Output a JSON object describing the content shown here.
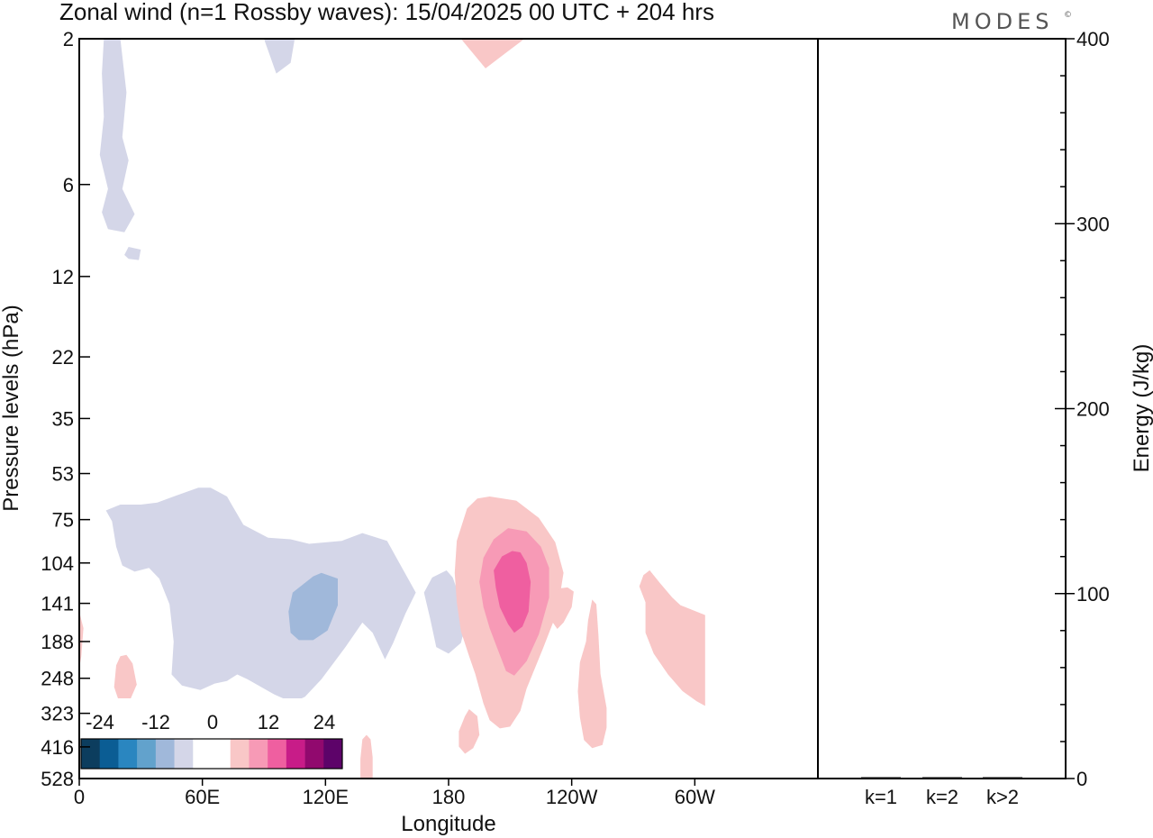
{
  "header": {
    "title": "Zonal wind (n=1 Rossby waves):  15/04/2025  00 UTC  + 204 hrs",
    "brand": "MODES",
    "brand_mark": "©"
  },
  "chart_data": [
    {
      "type": "heatmap",
      "title": "Zonal wind (n=1 Rossby waves):  15/04/2025  00 UTC  + 204 hrs",
      "xlabel": "Longitude",
      "ylabel": "Pressure levels (hPa)",
      "x_ticks": [
        "0",
        "60E",
        "120E",
        "180",
        "120W",
        "60W"
      ],
      "x_tick_values": [
        0,
        60,
        120,
        180,
        240,
        300
      ],
      "xlim": [
        0,
        360
      ],
      "y_ticks": [
        "2",
        "6",
        "12",
        "22",
        "35",
        "53",
        "75",
        "104",
        "141",
        "188",
        "248",
        "323",
        "416",
        "528"
      ],
      "grid": false,
      "colorbar": {
        "tick_labels": [
          "-24",
          "-12",
          "0",
          "12",
          "24"
        ],
        "colors": [
          "#0c3d5e",
          "#0b5d94",
          "#2a86c0",
          "#62a2cc",
          "#a0b8da",
          "#d4d6e8",
          "#ffffff",
          "#ffffff",
          "#f9c7c7",
          "#f79ab6",
          "#ef5fa0",
          "#c81c88",
          "#91096e",
          "#5d0369"
        ]
      },
      "contours": [
        {
          "name": "neg-1",
          "level": -4,
          "color": "#d4d6e8",
          "path": [
            [
              12,
              2.0
            ],
            [
              20,
              2.0
            ],
            [
              23,
              3.0
            ],
            [
              21,
              4.2
            ],
            [
              24,
              5.0
            ],
            [
              21,
              6.2
            ],
            [
              27,
              7.5
            ],
            [
              22,
              8.6
            ],
            [
              14,
              8.4
            ],
            [
              11,
              7.4
            ],
            [
              14,
              6.2
            ],
            [
              10,
              4.8
            ],
            [
              12,
              3.6
            ],
            [
              11,
              2.6
            ]
          ]
        },
        {
          "name": "neg-1b",
          "level": -4,
          "color": "#d4d6e8",
          "path": [
            [
              22,
              10.2
            ],
            [
              24,
              9.6
            ],
            [
              30,
              9.8
            ],
            [
              29,
              10.6
            ],
            [
              24,
              10.5
            ]
          ]
        },
        {
          "name": "neg-1c",
          "level": -4,
          "color": "#d4d6e8",
          "path": [
            [
              90,
              2.0
            ],
            [
              105,
              2.0
            ],
            [
              103,
              2.4
            ],
            [
              96,
              2.6
            ]
          ]
        },
        {
          "name": "neg-2",
          "level": -4,
          "color": "#d4d6e8",
          "path": [
            [
              38,
              66
            ],
            [
              46,
              63
            ],
            [
              58,
              59
            ],
            [
              64,
              59
            ],
            [
              72,
              63
            ],
            [
              80,
              78
            ],
            [
              92,
              86
            ],
            [
              103,
              87
            ],
            [
              112,
              90
            ],
            [
              128,
              88
            ],
            [
              138,
              83
            ],
            [
              150,
              88
            ],
            [
              158,
              110
            ],
            [
              164,
              130
            ],
            [
              159,
              152
            ],
            [
              153,
              190
            ],
            [
              149,
              215
            ],
            [
              143,
              176
            ],
            [
              138,
              163
            ],
            [
              130,
              195
            ],
            [
              118,
              250
            ],
            [
              110,
              285
            ],
            [
              104,
              298
            ],
            [
              95,
              280
            ],
            [
              82,
              250
            ],
            [
              77,
              241
            ],
            [
              72,
              253
            ],
            [
              66,
              258
            ],
            [
              59,
              271
            ],
            [
              50,
              262
            ],
            [
              45,
              241
            ],
            [
              46,
              188
            ],
            [
              44,
              142
            ],
            [
              39,
              117
            ],
            [
              34,
              108
            ],
            [
              27,
              111
            ],
            [
              21,
              106
            ],
            [
              18,
              92
            ],
            [
              16,
              76
            ],
            [
              13,
              70
            ],
            [
              20,
              67
            ],
            [
              30,
              67
            ]
          ]
        },
        {
          "name": "neg-3",
          "level": -4,
          "color": "#d4d6e8",
          "path": [
            [
              179,
              110
            ],
            [
              182,
              116
            ],
            [
              189,
              158
            ],
            [
              186,
              190
            ],
            [
              180,
              206
            ],
            [
              174,
              196
            ],
            [
              171,
              158
            ],
            [
              168,
              130
            ],
            [
              172,
              116
            ]
          ]
        },
        {
          "name": "neg-4",
          "level": -4,
          "color": "#d4d6e8",
          "path": [
            [
              249,
              300
            ],
            [
              251,
              307
            ],
            [
              249,
              319
            ],
            [
              246,
              320
            ],
            [
              244,
              308
            ]
          ]
        },
        {
          "name": "neg-5",
          "level": -8,
          "color": "#a0b8da",
          "path": [
            [
              114,
              115
            ],
            [
              118,
              112
            ],
            [
              126,
              117
            ],
            [
              126,
              143
            ],
            [
              121,
              173
            ],
            [
              114,
              186
            ],
            [
              107,
              186
            ],
            [
              103,
              176
            ],
            [
              102,
              150
            ],
            [
              104,
              130
            ]
          ]
        },
        {
          "name": "pos-1",
          "level": 4,
          "color": "#f9c7c7",
          "path": [
            [
              186,
              2.0
            ],
            [
              217,
              2.0
            ],
            [
              207,
              2.25
            ],
            [
              198,
              2.5
            ]
          ]
        },
        {
          "name": "pos-2",
          "level": 4,
          "color": "#f9c7c7",
          "path": [
            [
              200,
              63
            ],
            [
              213,
              65
            ],
            [
              224,
              74
            ],
            [
              232,
              89
            ],
            [
              236,
              112
            ],
            [
              233,
              150
            ],
            [
              226,
              198
            ],
            [
              218,
              268
            ],
            [
              215,
              317
            ],
            [
              210,
              357
            ],
            [
              205,
              362
            ],
            [
              200,
              340
            ],
            [
              197,
              300
            ],
            [
              193,
              240
            ],
            [
              190,
              210
            ],
            [
              186,
              174
            ],
            [
              184,
              140
            ],
            [
              183,
              112
            ],
            [
              184,
              88
            ],
            [
              189,
              69
            ],
            [
              194,
              64
            ]
          ]
        },
        {
          "name": "pos-3",
          "level": 4,
          "color": "#f9c7c7",
          "path": [
            [
              278,
              110
            ],
            [
              283,
              121
            ],
            [
              289,
              135
            ],
            [
              293,
              143
            ],
            [
              305,
              154
            ],
            [
              305,
              305
            ],
            [
              301,
              295
            ],
            [
              294,
              273
            ],
            [
              287,
              241
            ],
            [
              280,
              206
            ],
            [
              276,
              176
            ],
            [
              276,
              140
            ],
            [
              273,
              124
            ],
            [
              275,
              114
            ]
          ]
        },
        {
          "name": "pos-4",
          "level": 4,
          "color": "#f9c7c7",
          "path": [
            [
              278,
              110
            ],
            [
              283,
              121
            ],
            [
              289,
              135
            ],
            [
              293,
              143
            ],
            [
              305,
              154
            ],
            [
              305,
              305
            ],
            [
              301,
              295
            ],
            [
              294,
              273
            ],
            [
              287,
              241
            ],
            [
              280,
              206
            ],
            [
              276,
              176
            ],
            [
              276,
              140
            ],
            [
              273,
              124
            ],
            [
              275,
              114
            ]
          ]
        },
        {
          "name": "pos-5",
          "level": 4,
          "color": "#f9c7c7",
          "path": [
            [
              238,
              125
            ],
            [
              241,
              129
            ],
            [
              240,
              145
            ],
            [
              236,
              163
            ],
            [
              233,
              171
            ],
            [
              230,
              160
            ],
            [
              232,
              135
            ],
            [
              234,
              126
            ]
          ]
        },
        {
          "name": "pos-6",
          "level": 4,
          "color": "#f9c7c7",
          "path": [
            [
              250,
              137
            ],
            [
              252,
              142
            ],
            [
              253,
              178
            ],
            [
              254,
              240
            ],
            [
              257,
              310
            ],
            [
              257,
              360
            ],
            [
              255,
              410
            ],
            [
              250,
              420
            ],
            [
              246,
              395
            ],
            [
              244,
              333
            ],
            [
              243,
              274
            ],
            [
              244,
              220
            ],
            [
              247,
              188
            ],
            [
              248,
              160
            ]
          ]
        },
        {
          "name": "pos-7",
          "level": 4,
          "color": "#f9c7c7",
          "path": [
            [
              0,
              150
            ],
            [
              2,
              170
            ],
            [
              1,
              210
            ],
            [
              0,
              230
            ]
          ]
        },
        {
          "name": "pos-8",
          "level": 4,
          "color": "#f9c7c7",
          "path": [
            [
              23,
              208
            ],
            [
              26,
              222
            ],
            [
              28,
              260
            ],
            [
              24,
              300
            ],
            [
              20,
              304
            ],
            [
              17,
              265
            ],
            [
              18,
              225
            ],
            [
              20,
              210
            ]
          ]
        },
        {
          "name": "pos-9",
          "level": 4,
          "color": "#f9c7c7",
          "path": [
            [
              190,
              313
            ],
            [
              194,
              330
            ],
            [
              195,
              380
            ],
            [
              192,
              420
            ],
            [
              188,
              438
            ],
            [
              185,
              415
            ],
            [
              185,
              370
            ],
            [
              188,
              330
            ]
          ]
        },
        {
          "name": "pos-10",
          "level": 4,
          "color": "#f9c7c7",
          "path": [
            [
              140,
              380
            ],
            [
              142,
              393
            ],
            [
              143,
              450
            ],
            [
              143,
              528
            ],
            [
              137,
              528
            ],
            [
              137,
              455
            ],
            [
              138,
              393
            ]
          ]
        },
        {
          "name": "pos-11",
          "level": 8,
          "color": "#f79ab6",
          "path": [
            [
              209,
              80
            ],
            [
              218,
              82
            ],
            [
              225,
              92
            ],
            [
              229,
              108
            ],
            [
              229,
              135
            ],
            [
              224,
              178
            ],
            [
              218,
              218
            ],
            [
              212,
              243
            ],
            [
              208,
              235
            ],
            [
              204,
              200
            ],
            [
              200,
              170
            ],
            [
              197,
              145
            ],
            [
              195,
              120
            ],
            [
              197,
              100
            ],
            [
              202,
              87
            ]
          ]
        },
        {
          "name": "pos-12",
          "level": 12,
          "color": "#ef5fa0",
          "path": [
            [
              211,
              95
            ],
            [
              215,
              96
            ],
            [
              218,
              104
            ],
            [
              220,
              120
            ],
            [
              219,
              150
            ],
            [
              216,
              168
            ],
            [
              212,
              176
            ],
            [
              209,
              165
            ],
            [
              205,
              145
            ],
            [
              203,
              125
            ],
            [
              202,
              110
            ],
            [
              206,
              99
            ]
          ]
        }
      ]
    },
    {
      "type": "bar",
      "categories": [
        "k=1",
        "k=2",
        "k>2"
      ],
      "values": [
        0,
        0,
        0
      ],
      "ylabel": "Energy (J/kg)",
      "ylim": [
        0,
        400
      ],
      "y_ticks": [
        "0",
        "100",
        "200",
        "300",
        "400"
      ],
      "color": "#000000"
    }
  ]
}
